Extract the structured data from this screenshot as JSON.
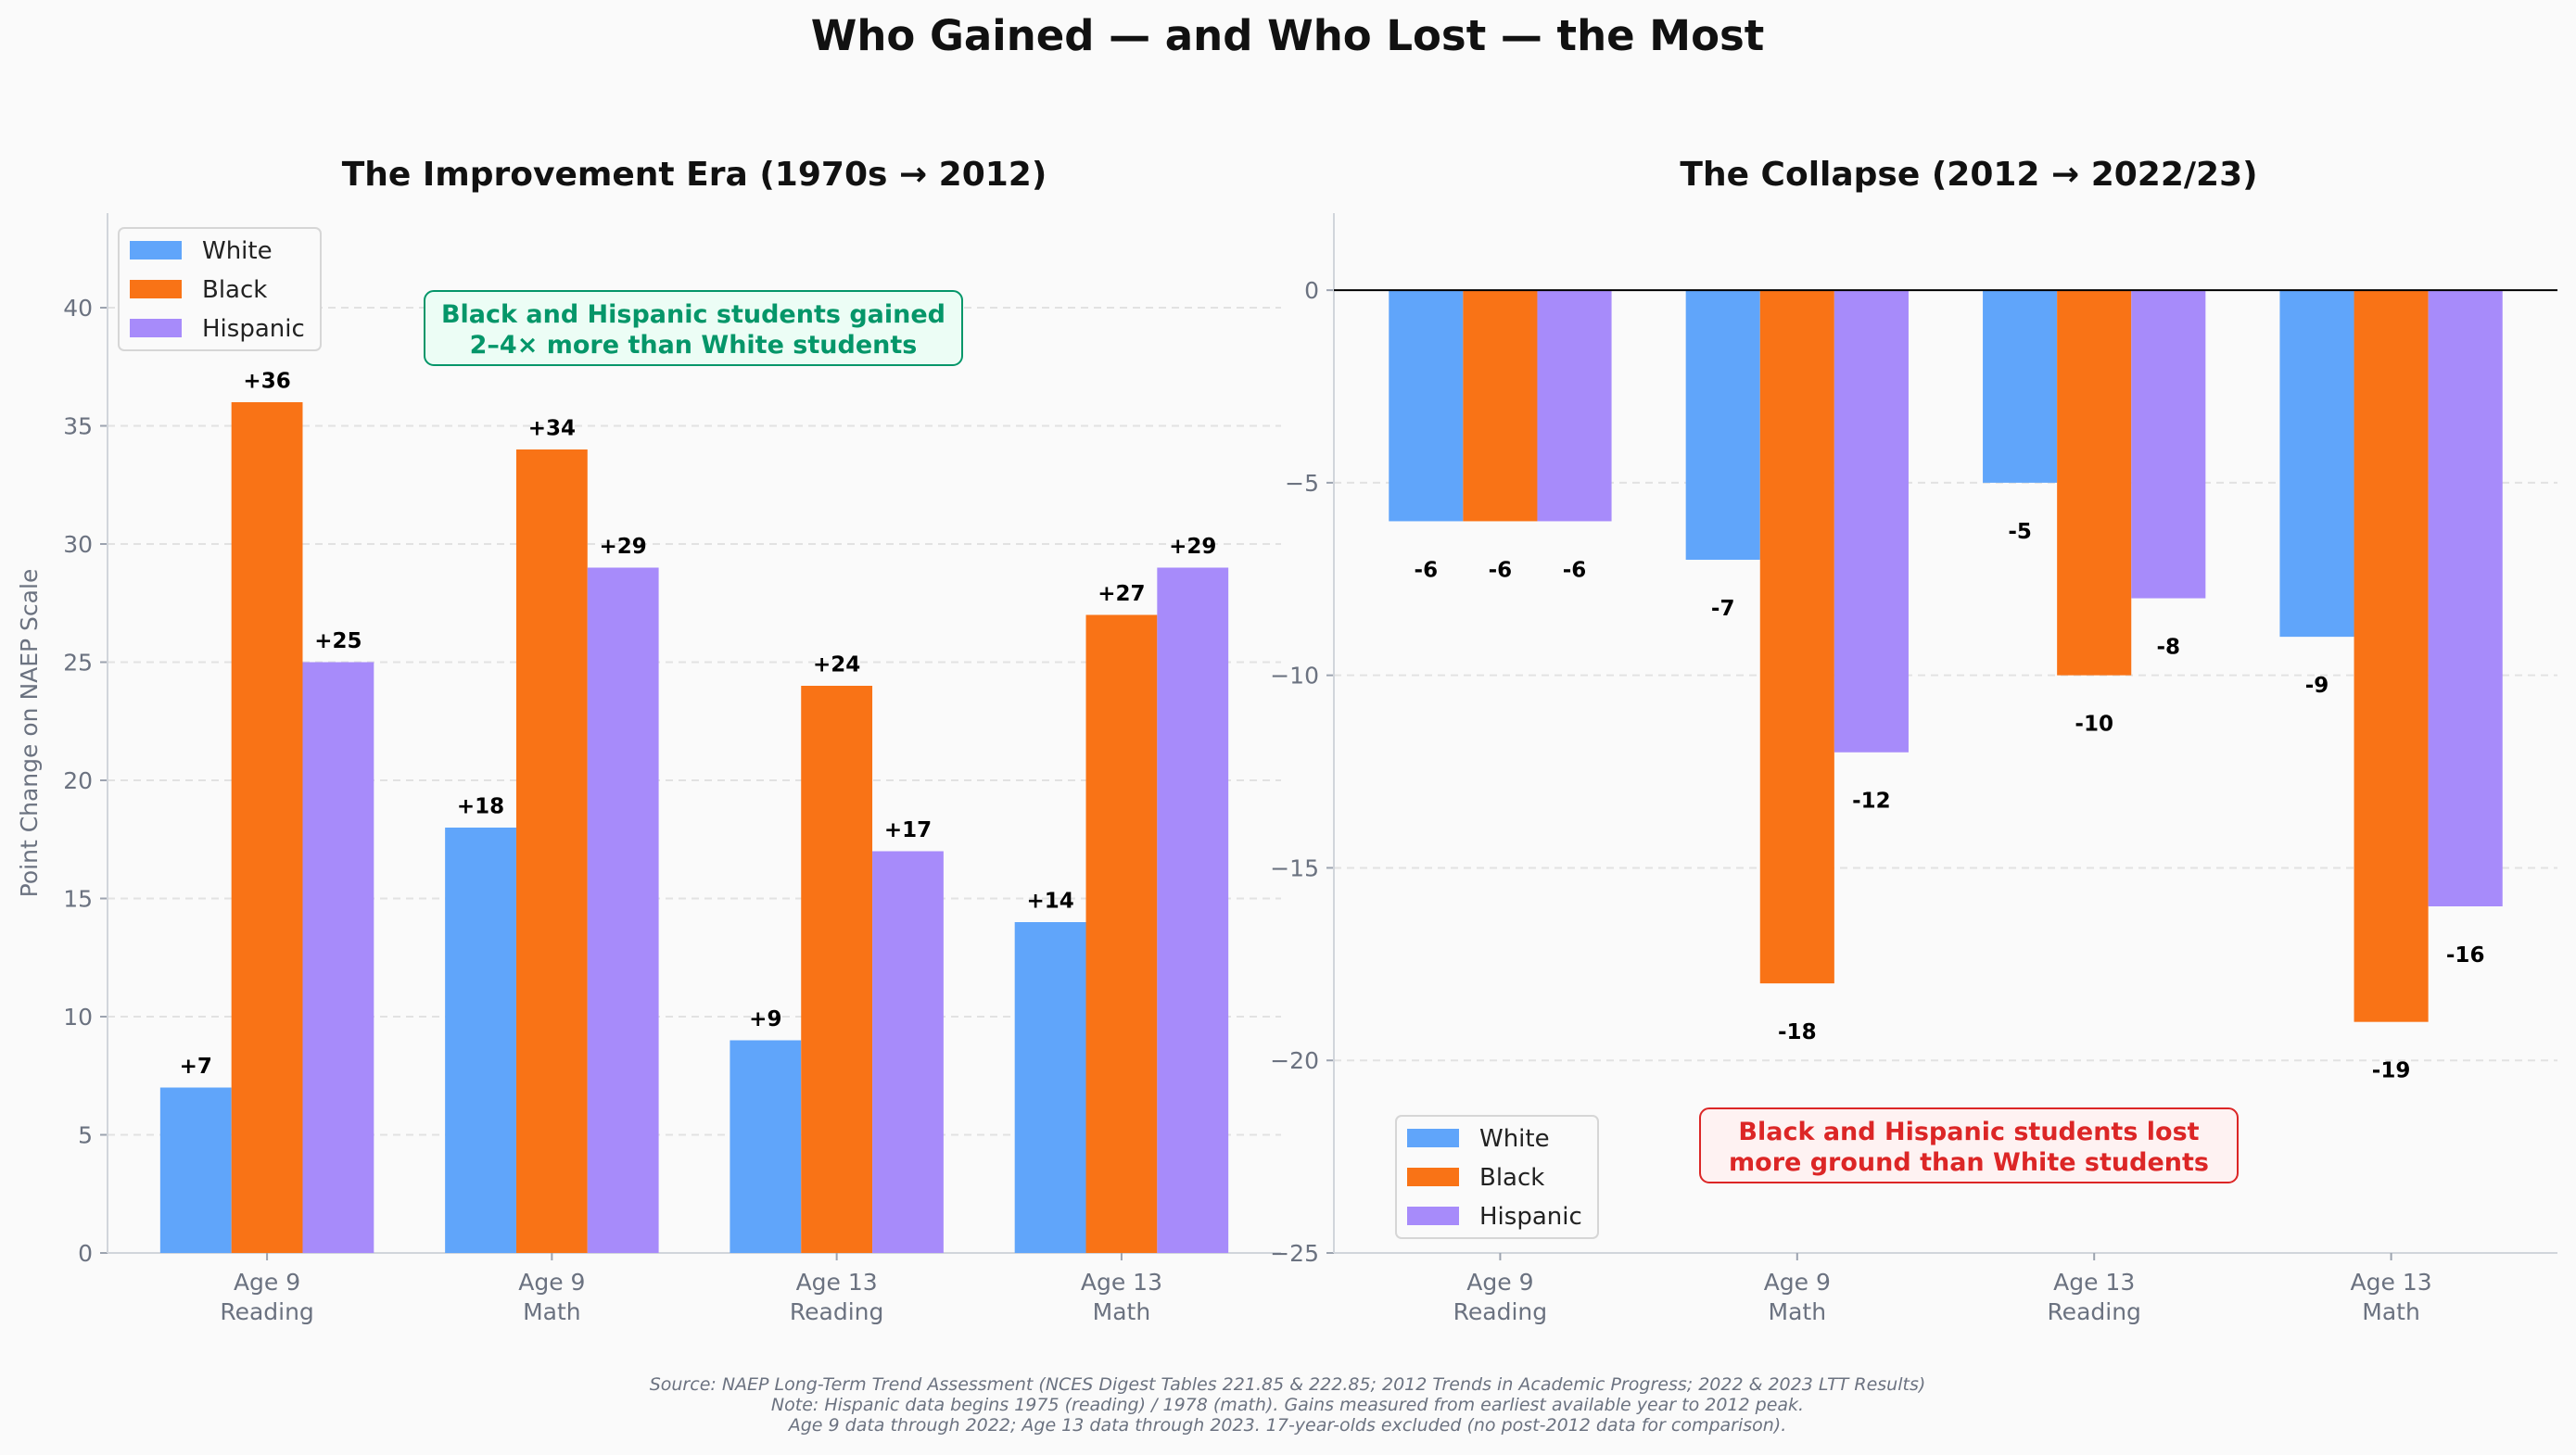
{
  "title": "Who Gained — and Who Lost — the Most",
  "colors": {
    "White": "#60a5fa",
    "Black": "#f97316",
    "Hispanic": "#a78bfa"
  },
  "chart_data": [
    {
      "type": "bar",
      "title": "The Improvement Era (1970s → 2012)",
      "ylabel": "Point Change on NAEP Scale",
      "xlabel": "",
      "categories": [
        [
          "Age 9",
          "Reading"
        ],
        [
          "Age 9",
          "Math"
        ],
        [
          "Age 13",
          "Reading"
        ],
        [
          "Age 13",
          "Math"
        ]
      ],
      "series": [
        {
          "name": "White",
          "values": [
            7,
            18,
            9,
            14
          ],
          "labels": [
            "+7",
            "+18",
            "+9",
            "+14"
          ]
        },
        {
          "name": "Black",
          "values": [
            36,
            34,
            24,
            27
          ],
          "labels": [
            "+36",
            "+34",
            "+24",
            "+27"
          ]
        },
        {
          "name": "Hispanic",
          "values": [
            25,
            29,
            17,
            29
          ],
          "labels": [
            "+25",
            "+29",
            "+17",
            "+29"
          ]
        }
      ],
      "ylim": [
        0,
        44
      ],
      "yticks": [
        0,
        5,
        10,
        15,
        20,
        25,
        30,
        35,
        40
      ],
      "grid": true,
      "legend": "top-left",
      "annotation": [
        "Black and Hispanic students gained",
        "2–4× more than White students"
      ],
      "annotation_color": "#059669"
    },
    {
      "type": "bar",
      "title": "The Collapse (2012 → 2022/23)",
      "xlabel": "",
      "ylabel": "",
      "categories": [
        [
          "Age 9",
          "Reading"
        ],
        [
          "Age 9",
          "Math"
        ],
        [
          "Age 13",
          "Reading"
        ],
        [
          "Age 13",
          "Math"
        ]
      ],
      "series": [
        {
          "name": "White",
          "values": [
            -6,
            -7,
            -5,
            -9
          ],
          "labels": [
            "-6",
            "-7",
            "-5",
            "-9"
          ]
        },
        {
          "name": "Black",
          "values": [
            -6,
            -18,
            -10,
            -19
          ],
          "labels": [
            "-6",
            "-18",
            "-10",
            "-19"
          ]
        },
        {
          "name": "Hispanic",
          "values": [
            -6,
            -12,
            -8,
            -16
          ],
          "labels": [
            "-6",
            "-12",
            "-8",
            "-16"
          ]
        }
      ],
      "ylim": [
        -25,
        2
      ],
      "yticks": [
        0,
        -5,
        -10,
        -15,
        -20,
        -25
      ],
      "ytick_labels": [
        "0",
        "−5",
        "−10",
        "−15",
        "−20",
        "−25"
      ],
      "grid": true,
      "legend": "bottom-left",
      "annotation": [
        "Black and Hispanic students lost",
        "more ground than White students"
      ],
      "annotation_color": "#dc2626"
    }
  ],
  "footnote": [
    "Source: NAEP Long-Term Trend Assessment (NCES Digest Tables 221.85 & 222.85; 2012 Trends in Academic Progress; 2022 & 2023 LTT Results)",
    "Note: Hispanic data begins 1975 (reading) / 1978 (math). Gains measured from earliest available year to 2012 peak.",
    "Age 9 data through 2022; Age 13 data through 2023. 17-year-olds excluded (no post-2012 data for comparison)."
  ]
}
